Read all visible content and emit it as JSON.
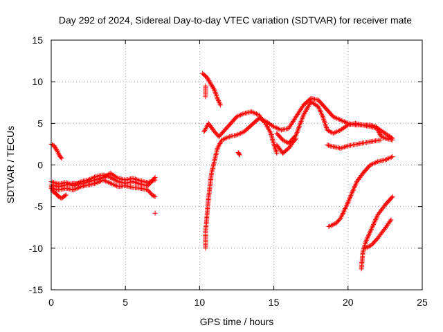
{
  "chart_data": {
    "type": "scatter",
    "title": "Day 292 of 2024, Sidereal Day-to-day VTEC variation (SDTVAR) for receiver mate",
    "xlabel": "GPS time / hours",
    "ylabel": "SDTVAR / TECUs",
    "xlim": [
      0,
      25
    ],
    "ylim": [
      -15,
      15
    ],
    "xticks": [
      0,
      5,
      10,
      15,
      20,
      25
    ],
    "yticks": [
      -15,
      -10,
      -5,
      0,
      5,
      10,
      15
    ],
    "grid": true,
    "marker": "+",
    "marker_color": "#ff0000",
    "series": [
      {
        "name": "arc-a-upper",
        "points": [
          [
            0.0,
            2.5
          ],
          [
            0.2,
            2.3
          ],
          [
            0.4,
            1.7
          ],
          [
            0.6,
            1.0
          ],
          [
            0.7,
            0.8
          ]
        ]
      },
      {
        "name": "arc-a-lower",
        "points": [
          [
            0.0,
            -2.4
          ],
          [
            0.1,
            -3.2
          ],
          [
            0.3,
            -3.4
          ],
          [
            0.5,
            -3.8
          ],
          [
            0.7,
            -4.0
          ],
          [
            1.0,
            -3.6
          ]
        ]
      },
      {
        "name": "band-b-1",
        "points": [
          [
            0.0,
            -2.0
          ],
          [
            0.5,
            -2.3
          ],
          [
            1.0,
            -2.1
          ],
          [
            1.5,
            -2.5
          ],
          [
            2.0,
            -2.0
          ],
          [
            2.5,
            -1.8
          ],
          [
            3.0,
            -1.4
          ],
          [
            3.5,
            -1.2
          ],
          [
            4.0,
            -1.5
          ],
          [
            4.5,
            -2.0
          ],
          [
            5.0,
            -2.2
          ],
          [
            5.5,
            -2.0
          ],
          [
            6.0,
            -2.3
          ],
          [
            6.5,
            -2.5
          ],
          [
            7.0,
            -1.5
          ]
        ]
      },
      {
        "name": "band-b-2",
        "points": [
          [
            0.0,
            -2.8
          ],
          [
            0.5,
            -3.0
          ],
          [
            1.0,
            -2.8
          ],
          [
            1.5,
            -3.0
          ],
          [
            2.0,
            -2.6
          ],
          [
            2.5,
            -2.4
          ],
          [
            3.0,
            -2.2
          ],
          [
            3.5,
            -1.8
          ],
          [
            4.0,
            -2.2
          ],
          [
            4.5,
            -2.6
          ],
          [
            5.0,
            -2.5
          ],
          [
            5.5,
            -2.7
          ],
          [
            6.0,
            -2.8
          ],
          [
            6.5,
            -3.0
          ],
          [
            6.8,
            -3.6
          ],
          [
            7.0,
            -3.8
          ]
        ]
      },
      {
        "name": "band-b-3",
        "points": [
          [
            0.0,
            -2.4
          ],
          [
            0.5,
            -2.6
          ],
          [
            1.0,
            -2.4
          ],
          [
            1.5,
            -2.2
          ],
          [
            2.0,
            -2.3
          ],
          [
            2.5,
            -2.0
          ],
          [
            3.0,
            -1.8
          ],
          [
            3.5,
            -1.5
          ],
          [
            4.0,
            -1.0
          ],
          [
            4.5,
            -1.6
          ],
          [
            5.0,
            -1.8
          ],
          [
            5.5,
            -1.6
          ],
          [
            6.0,
            -1.9
          ],
          [
            6.5,
            -2.1
          ],
          [
            7.0,
            -1.8
          ]
        ]
      },
      {
        "name": "isolated-1",
        "points": [
          [
            7.0,
            -5.8
          ]
        ]
      },
      {
        "name": "arc-c-top",
        "points": [
          [
            10.2,
            11.0
          ],
          [
            10.5,
            10.5
          ],
          [
            10.8,
            9.6
          ],
          [
            11.0,
            9.0
          ],
          [
            11.2,
            8.0
          ],
          [
            11.4,
            7.2
          ]
        ]
      },
      {
        "name": "arc-c-stub",
        "points": [
          [
            10.4,
            9.5
          ],
          [
            10.4,
            8.2
          ]
        ]
      },
      {
        "name": "arc-c-rise",
        "points": [
          [
            10.4,
            -10.0
          ],
          [
            10.4,
            -8.0
          ],
          [
            10.5,
            -6.0
          ],
          [
            10.6,
            -4.0
          ],
          [
            10.7,
            -2.5
          ],
          [
            10.8,
            -1.0
          ],
          [
            11.0,
            0.5
          ],
          [
            11.2,
            2.0
          ],
          [
            11.5,
            3.0
          ],
          [
            12.0,
            3.4
          ],
          [
            12.5,
            3.6
          ],
          [
            13.0,
            4.0
          ],
          [
            13.5,
            4.8
          ],
          [
            14.0,
            5.6
          ],
          [
            14.5,
            5.2
          ],
          [
            15.0,
            4.6
          ],
          [
            15.5,
            4.2
          ],
          [
            16.0,
            4.4
          ],
          [
            16.5,
            5.8
          ],
          [
            17.0,
            7.2
          ],
          [
            17.5,
            8.0
          ],
          [
            18.0,
            7.8
          ],
          [
            18.5,
            6.8
          ],
          [
            19.0,
            5.8
          ],
          [
            19.5,
            5.4
          ],
          [
            20.0,
            5.0
          ],
          [
            20.5,
            4.8
          ],
          [
            21.0,
            4.8
          ],
          [
            21.5,
            4.6
          ],
          [
            22.0,
            4.4
          ],
          [
            22.5,
            3.8
          ],
          [
            23.0,
            3.2
          ]
        ]
      },
      {
        "name": "arc-d",
        "points": [
          [
            10.3,
            4.0
          ],
          [
            10.6,
            5.0
          ],
          [
            11.0,
            4.0
          ],
          [
            11.3,
            3.4
          ],
          [
            11.6,
            4.0
          ],
          [
            12.0,
            4.8
          ],
          [
            12.5,
            5.8
          ],
          [
            13.0,
            6.2
          ],
          [
            13.5,
            6.4
          ],
          [
            14.0,
            6.0
          ],
          [
            14.5,
            4.8
          ],
          [
            14.8,
            3.8
          ],
          [
            15.0,
            2.5
          ],
          [
            15.2,
            1.4
          ]
        ]
      },
      {
        "name": "arc-d-isolated",
        "points": [
          [
            12.6,
            1.5
          ],
          [
            12.7,
            1.2
          ]
        ]
      },
      {
        "name": "arc-e",
        "points": [
          [
            15.2,
            3.8
          ],
          [
            15.6,
            3.0
          ],
          [
            16.0,
            2.6
          ],
          [
            16.5,
            3.6
          ],
          [
            17.0,
            6.0
          ],
          [
            17.5,
            7.6
          ],
          [
            18.0,
            7.0
          ],
          [
            18.3,
            5.8
          ],
          [
            18.6,
            4.2
          ],
          [
            19.0,
            3.8
          ],
          [
            19.5,
            4.2
          ],
          [
            20.0,
            4.8
          ],
          [
            20.5,
            5.0
          ],
          [
            21.0,
            4.8
          ],
          [
            21.5,
            4.8
          ],
          [
            21.9,
            4.6
          ],
          [
            22.2,
            3.5
          ],
          [
            22.5,
            3.2
          ],
          [
            23.0,
            3.0
          ]
        ]
      },
      {
        "name": "arc-e-tail",
        "points": [
          [
            18.6,
            2.4
          ],
          [
            19.0,
            2.2
          ],
          [
            19.5,
            2.0
          ],
          [
            20.0,
            2.3
          ],
          [
            21.5,
            2.8
          ],
          [
            22.2,
            3.0
          ]
        ]
      },
      {
        "name": "arc-e-low",
        "points": [
          [
            15.2,
            2.4
          ],
          [
            15.6,
            1.4
          ],
          [
            16.0,
            2.0
          ],
          [
            16.5,
            3.2
          ]
        ]
      },
      {
        "name": "arc-f",
        "points": [
          [
            18.7,
            -7.4
          ],
          [
            19.2,
            -7.0
          ],
          [
            19.5,
            -6.4
          ],
          [
            20.0,
            -4.5
          ],
          [
            20.3,
            -3.2
          ],
          [
            20.6,
            -2.0
          ],
          [
            21.0,
            -1.0
          ],
          [
            21.5,
            0.0
          ],
          [
            22.0,
            0.4
          ],
          [
            22.5,
            0.6
          ],
          [
            23.0,
            1.0
          ]
        ]
      },
      {
        "name": "arc-g",
        "points": [
          [
            20.9,
            -12.5
          ],
          [
            21.0,
            -10.5
          ],
          [
            21.2,
            -9.2
          ],
          [
            21.5,
            -8.0
          ],
          [
            22.0,
            -6.0
          ],
          [
            22.5,
            -4.8
          ],
          [
            23.0,
            -3.8
          ]
        ]
      },
      {
        "name": "arc-h",
        "points": [
          [
            21.2,
            -10.0
          ],
          [
            21.6,
            -9.6
          ],
          [
            22.0,
            -8.8
          ],
          [
            22.5,
            -7.6
          ],
          [
            22.9,
            -6.6
          ]
        ]
      }
    ]
  }
}
